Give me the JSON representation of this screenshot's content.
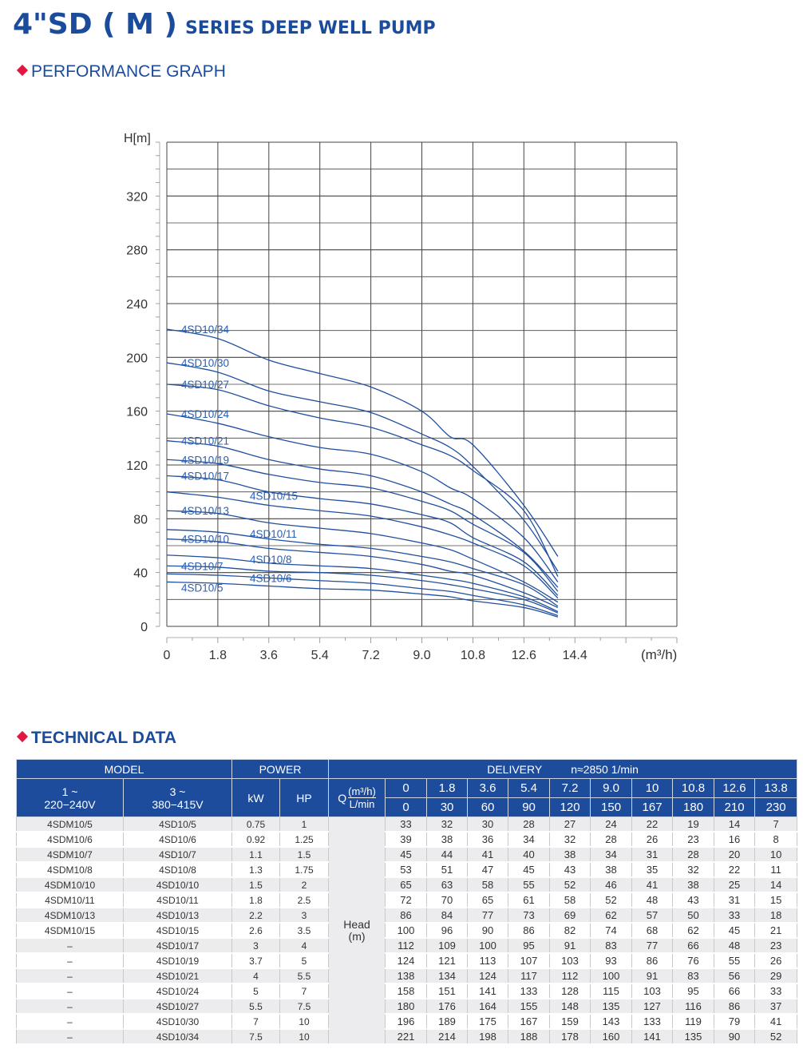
{
  "header": {
    "title_main": "4\"SD ( M )",
    "title_sub": "SERIES DEEP WELL PUMP",
    "performance_heading": "PERFORMANCE GRAPH",
    "technical_heading": "TECHNICAL DATA"
  },
  "colors": {
    "brand": "#1b4b9b",
    "accent": "#e0173f",
    "curve": "#1f4f9e",
    "header_bg": "#1d4c9c"
  },
  "chart_data": {
    "type": "line",
    "title": "",
    "ylabel": "H[m]",
    "xlabel": "(m³/h)",
    "xlim": [
      0,
      18
    ],
    "ylim": [
      0,
      360
    ],
    "x_ticks": [
      "0",
      "1.8",
      "3.6",
      "5.4",
      "7.2",
      "9.0",
      "10.8",
      "12.6",
      "14.4"
    ],
    "y_ticks": [
      "0",
      "40",
      "80",
      "120",
      "160",
      "200",
      "240",
      "280",
      "320"
    ],
    "grid": true,
    "x": [
      0,
      1.8,
      3.6,
      5.4,
      7.2,
      9.0,
      10,
      10.8,
      12.6,
      13.8
    ],
    "series": [
      {
        "name": "4SD10/5",
        "values": [
          33,
          32,
          30,
          28,
          27,
          24,
          22,
          19,
          14,
          7
        ]
      },
      {
        "name": "4SD10/6",
        "values": [
          39,
          38,
          36,
          34,
          32,
          28,
          26,
          23,
          16,
          8
        ]
      },
      {
        "name": "4SD10/7",
        "values": [
          45,
          44,
          41,
          40,
          38,
          34,
          31,
          28,
          20,
          10
        ]
      },
      {
        "name": "4SD10/8",
        "values": [
          53,
          51,
          47,
          45,
          43,
          38,
          35,
          32,
          22,
          11
        ]
      },
      {
        "name": "4SD10/10",
        "values": [
          65,
          63,
          58,
          55,
          52,
          46,
          41,
          38,
          25,
          14
        ]
      },
      {
        "name": "4SD10/11",
        "values": [
          72,
          70,
          65,
          61,
          58,
          52,
          48,
          43,
          31,
          15
        ]
      },
      {
        "name": "4SD10/13",
        "values": [
          86,
          84,
          77,
          73,
          69,
          62,
          57,
          50,
          33,
          18
        ]
      },
      {
        "name": "4SD10/15",
        "values": [
          100,
          96,
          90,
          86,
          82,
          74,
          68,
          62,
          45,
          21
        ]
      },
      {
        "name": "4SD10/17",
        "values": [
          112,
          109,
          100,
          95,
          91,
          83,
          77,
          66,
          48,
          23
        ]
      },
      {
        "name": "4SD10/19",
        "values": [
          124,
          121,
          113,
          107,
          103,
          93,
          86,
          76,
          55,
          26
        ]
      },
      {
        "name": "4SD10/21",
        "values": [
          138,
          134,
          124,
          117,
          112,
          100,
          91,
          83,
          56,
          29
        ]
      },
      {
        "name": "4SD10/24",
        "values": [
          158,
          151,
          141,
          133,
          128,
          115,
          103,
          95,
          66,
          33
        ]
      },
      {
        "name": "4SD10/27",
        "values": [
          180,
          176,
          164,
          155,
          148,
          135,
          127,
          116,
          86,
          37
        ]
      },
      {
        "name": "4SD10/30",
        "values": [
          196,
          189,
          175,
          167,
          159,
          143,
          133,
          119,
          79,
          41
        ]
      },
      {
        "name": "4SD10/34",
        "values": [
          221,
          214,
          198,
          188,
          178,
          160,
          141,
          135,
          90,
          52
        ]
      }
    ]
  },
  "table": {
    "h_model": "MODEL",
    "h_power": "POWER",
    "h_delivery": "DELIVERY",
    "h_speed": "n≈2850 1/min",
    "h_single": [
      "1 ~",
      "220−240V"
    ],
    "h_three": [
      "3 ~",
      "380−415V"
    ],
    "h_kw": "kW",
    "h_hp": "HP",
    "h_q": "Q",
    "h_q_unit1": "(m³/h)",
    "h_q_unit2": "L/min",
    "head_label": [
      "Head",
      "(m)"
    ],
    "flow_m3h": [
      "0",
      "1.8",
      "3.6",
      "5.4",
      "7.2",
      "9.0",
      "10",
      "10.8",
      "12.6",
      "13.8"
    ],
    "flow_lmin": [
      "0",
      "30",
      "60",
      "90",
      "120",
      "150",
      "167",
      "180",
      "210",
      "230"
    ],
    "rows": [
      {
        "single": "4SDM10/5",
        "three": "4SD10/5",
        "kw": "0.75",
        "hp": "1",
        "head": [
          "33",
          "32",
          "30",
          "28",
          "27",
          "24",
          "22",
          "19",
          "14",
          "7"
        ]
      },
      {
        "single": "4SDM10/6",
        "three": "4SD10/6",
        "kw": "0.92",
        "hp": "1.25",
        "head": [
          "39",
          "38",
          "36",
          "34",
          "32",
          "28",
          "26",
          "23",
          "16",
          "8"
        ]
      },
      {
        "single": "4SDM10/7",
        "three": "4SD10/7",
        "kw": "1.1",
        "hp": "1.5",
        "head": [
          "45",
          "44",
          "41",
          "40",
          "38",
          "34",
          "31",
          "28",
          "20",
          "10"
        ]
      },
      {
        "single": "4SDM10/8",
        "three": "4SD10/8",
        "kw": "1.3",
        "hp": "1.75",
        "head": [
          "53",
          "51",
          "47",
          "45",
          "43",
          "38",
          "35",
          "32",
          "22",
          "11"
        ]
      },
      {
        "single": "4SDM10/10",
        "three": "4SD10/10",
        "kw": "1.5",
        "hp": "2",
        "head": [
          "65",
          "63",
          "58",
          "55",
          "52",
          "46",
          "41",
          "38",
          "25",
          "14"
        ]
      },
      {
        "single": "4SDM10/11",
        "three": "4SD10/11",
        "kw": "1.8",
        "hp": "2.5",
        "head": [
          "72",
          "70",
          "65",
          "61",
          "58",
          "52",
          "48",
          "43",
          "31",
          "15"
        ]
      },
      {
        "single": "4SDM10/13",
        "three": "4SD10/13",
        "kw": "2.2",
        "hp": "3",
        "head": [
          "86",
          "84",
          "77",
          "73",
          "69",
          "62",
          "57",
          "50",
          "33",
          "18"
        ]
      },
      {
        "single": "4SDM10/15",
        "three": "4SD10/15",
        "kw": "2.6",
        "hp": "3.5",
        "head": [
          "100",
          "96",
          "90",
          "86",
          "82",
          "74",
          "68",
          "62",
          "45",
          "21"
        ]
      },
      {
        "single": "–",
        "three": "4SD10/17",
        "kw": "3",
        "hp": "4",
        "head": [
          "112",
          "109",
          "100",
          "95",
          "91",
          "83",
          "77",
          "66",
          "48",
          "23"
        ]
      },
      {
        "single": "–",
        "three": "4SD10/19",
        "kw": "3.7",
        "hp": "5",
        "head": [
          "124",
          "121",
          "113",
          "107",
          "103",
          "93",
          "86",
          "76",
          "55",
          "26"
        ]
      },
      {
        "single": "–",
        "three": "4SD10/21",
        "kw": "4",
        "hp": "5.5",
        "head": [
          "138",
          "134",
          "124",
          "117",
          "112",
          "100",
          "91",
          "83",
          "56",
          "29"
        ]
      },
      {
        "single": "–",
        "three": "4SD10/24",
        "kw": "5",
        "hp": "7",
        "head": [
          "158",
          "151",
          "141",
          "133",
          "128",
          "115",
          "103",
          "95",
          "66",
          "33"
        ]
      },
      {
        "single": "–",
        "three": "4SD10/27",
        "kw": "5.5",
        "hp": "7.5",
        "head": [
          "180",
          "176",
          "164",
          "155",
          "148",
          "135",
          "127",
          "116",
          "86",
          "37"
        ]
      },
      {
        "single": "–",
        "three": "4SD10/30",
        "kw": "7",
        "hp": "10",
        "head": [
          "196",
          "189",
          "175",
          "167",
          "159",
          "143",
          "133",
          "119",
          "79",
          "41"
        ]
      },
      {
        "single": "–",
        "three": "4SD10/34",
        "kw": "7.5",
        "hp": "10",
        "head": [
          "221",
          "214",
          "198",
          "188",
          "178",
          "160",
          "141",
          "135",
          "90",
          "52"
        ]
      }
    ]
  }
}
